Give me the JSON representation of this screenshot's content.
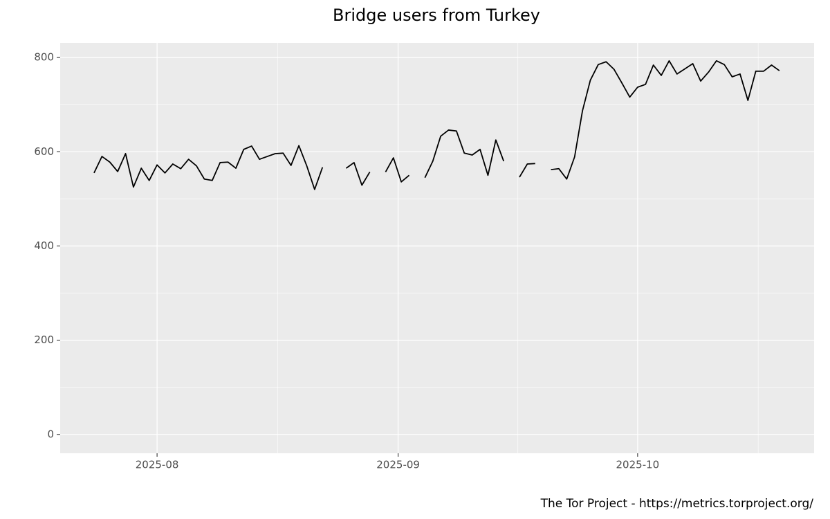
{
  "chart_data": {
    "type": "line",
    "title": "Bridge users from Turkey",
    "caption": "The Tor Project - https://metrics.torproject.org/",
    "series": [
      {
        "color": "#000000",
        "values": [
          555,
          590,
          578,
          558,
          596,
          525,
          565,
          539,
          572,
          555,
          574,
          564,
          584,
          570,
          542,
          539,
          577,
          578,
          565,
          605,
          612,
          584,
          590,
          596,
          597,
          571,
          613,
          570,
          520,
          567,
          null,
          null,
          565,
          577,
          529,
          557,
          null,
          557,
          587,
          536,
          550,
          null,
          545,
          580,
          633,
          646,
          644,
          597,
          593,
          605,
          550,
          625,
          580,
          null,
          546,
          574,
          575,
          null,
          562,
          564,
          542,
          589,
          687,
          752,
          785,
          791,
          775,
          746,
          716,
          737,
          743,
          784,
          762,
          793,
          765,
          776,
          787,
          750,
          769,
          793,
          785,
          759,
          765,
          709,
          771,
          771,
          784,
          772
        ]
      }
    ],
    "xlim": [
      -4.3,
      91.4
    ],
    "xticks": [
      {
        "value": 8,
        "label": "2025-08"
      },
      {
        "value": 38.6,
        "label": "2025-09"
      },
      {
        "value": 69,
        "label": "2025-10"
      }
    ],
    "ylim": [
      -40,
      831
    ],
    "yticks": [
      0,
      200,
      400,
      600,
      800
    ],
    "grid": true
  }
}
